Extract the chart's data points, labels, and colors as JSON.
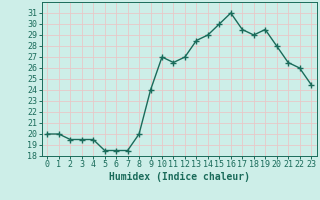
{
  "x": [
    0,
    1,
    2,
    3,
    4,
    5,
    6,
    7,
    8,
    9,
    10,
    11,
    12,
    13,
    14,
    15,
    16,
    17,
    18,
    19,
    20,
    21,
    22,
    23
  ],
  "y": [
    20.0,
    20.0,
    19.5,
    19.5,
    19.5,
    18.5,
    18.5,
    18.5,
    20.0,
    24.0,
    27.0,
    26.5,
    27.0,
    28.5,
    29.0,
    30.0,
    31.0,
    29.5,
    29.0,
    29.5,
    28.0,
    26.5,
    26.0,
    24.5
  ],
  "line_color": "#1a6b5a",
  "marker": "+",
  "marker_size": 4,
  "line_width": 1.0,
  "xlabel": "Humidex (Indice chaleur)",
  "xlabel_fontsize": 7,
  "tick_fontsize": 6,
  "ylim": [
    18,
    32
  ],
  "xlim": [
    -0.5,
    23.5
  ],
  "yticks": [
    18,
    19,
    20,
    21,
    22,
    23,
    24,
    25,
    26,
    27,
    28,
    29,
    30,
    31
  ],
  "xticks": [
    0,
    1,
    2,
    3,
    4,
    5,
    6,
    7,
    8,
    9,
    10,
    11,
    12,
    13,
    14,
    15,
    16,
    17,
    18,
    19,
    20,
    21,
    22,
    23
  ],
  "bg_color": "#cdeee8",
  "grid_color": "#e8c8c8",
  "spine_color": "#1a6b5a"
}
